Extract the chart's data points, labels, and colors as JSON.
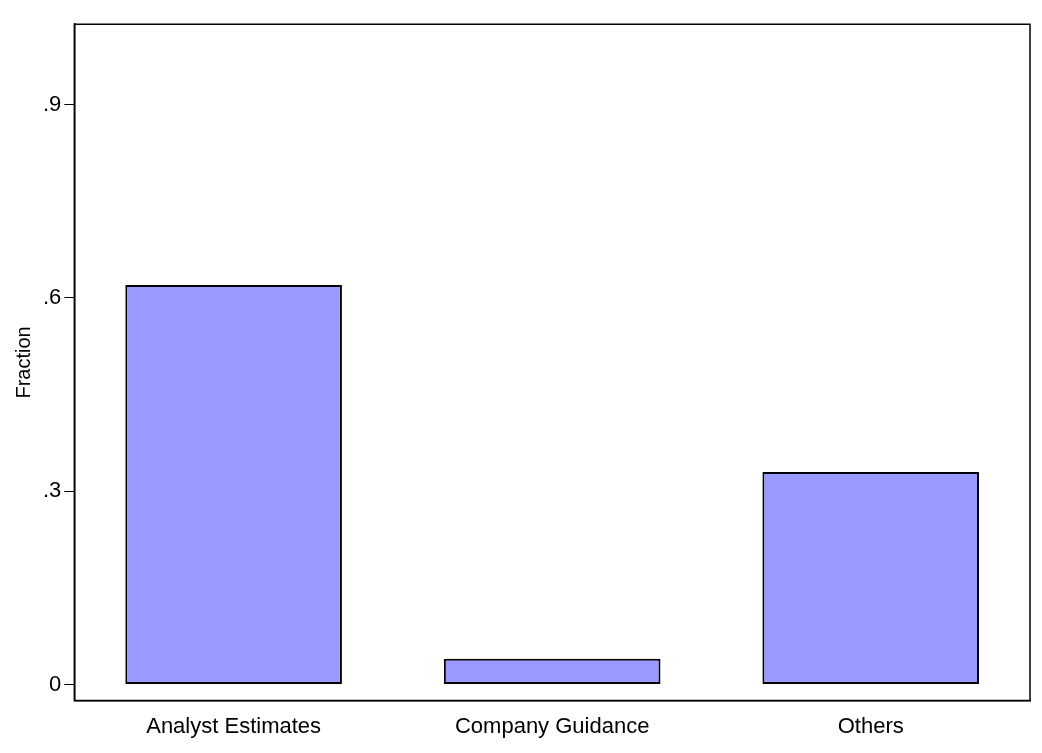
{
  "chart_data": {
    "type": "bar",
    "ylabel": "Fraction",
    "categories": [
      "Analyst Estimates",
      "Company Guidance",
      "Others"
    ],
    "values": [
      0.62,
      0.04,
      0.33
    ],
    "color": "#9999ff",
    "ylim": [
      -0.025,
      1.025
    ],
    "yticks": [
      {
        "value": 0,
        "label": "0"
      },
      {
        "value": 0.3,
        "label": ".3"
      },
      {
        "value": 0.6,
        "label": ".6"
      },
      {
        "value": 0.9,
        "label": ".9"
      }
    ],
    "grid": false,
    "legend": false
  }
}
